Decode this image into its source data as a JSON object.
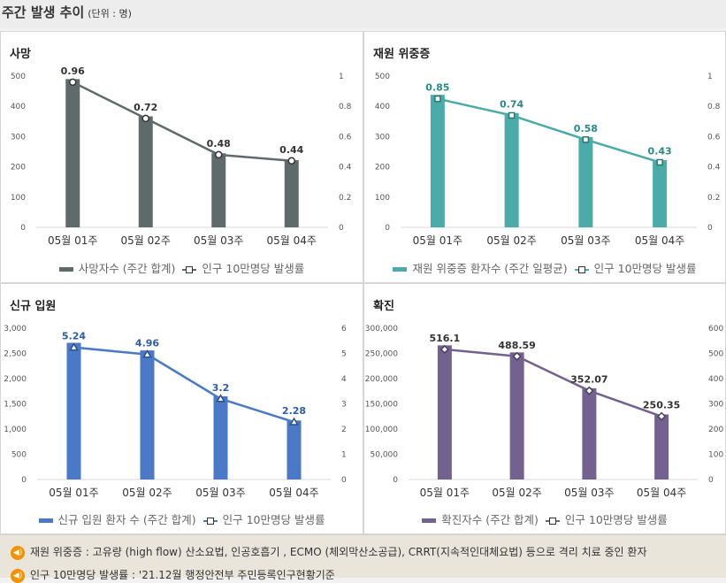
{
  "page": {
    "title": "주간 발생 추이",
    "unit": "(단위 : 명)"
  },
  "notes": [
    {
      "icon": "speaker-icon",
      "text": "재원 위중증 : 고유량 (high flow) 산소요법, 인공호흡기 , ECMO (체외막산소공급), CRRT(지속적인대체요법) 등으로 격리 치료 중인 환자"
    },
    {
      "icon": "speaker-icon",
      "text": "인구 10만명당 발생률 : '21.12월 행정안전부 주민등록인구현황기준"
    }
  ],
  "chart_data": [
    {
      "id": "deaths",
      "type": "bar",
      "title": "사망",
      "categories": [
        "05월 01주",
        "05월 02주",
        "05월 03주",
        "05월 04주"
      ],
      "series": [
        {
          "name": "사망자수 (주간 합계)",
          "kind": "bar",
          "axis": "left",
          "values": [
            490,
            367,
            245,
            222
          ],
          "color": "#5f6a6a"
        },
        {
          "name": "인구 10만명당 발생률",
          "kind": "line",
          "axis": "right",
          "marker": "circle",
          "values": [
            0.96,
            0.72,
            0.48,
            0.44
          ],
          "labels": [
            "0.96",
            "0.72",
            "0.48",
            "0.44"
          ],
          "color": "#5f6a6a"
        }
      ],
      "y_left": {
        "min": 0,
        "max": 500,
        "ticks": [
          "0",
          "100",
          "200",
          "300",
          "400",
          "500"
        ]
      },
      "y_right": {
        "min": 0,
        "max": 1,
        "ticks": [
          "0",
          "0.2",
          "0.4",
          "0.6",
          "0.8",
          "1"
        ]
      }
    },
    {
      "id": "critical",
      "type": "bar",
      "title": "재원 위중증",
      "categories": [
        "05월 01주",
        "05월 02주",
        "05월 03주",
        "05월 04주"
      ],
      "series": [
        {
          "name": "재원 위중증 환자수 (주간 일평균)",
          "kind": "bar",
          "axis": "left",
          "values": [
            438,
            378,
            298,
            222
          ],
          "color": "#4aaba8"
        },
        {
          "name": "인구 10만명당 발생률",
          "kind": "line",
          "axis": "right",
          "marker": "square",
          "values": [
            0.85,
            0.74,
            0.58,
            0.43
          ],
          "labels": [
            "0.85",
            "0.74",
            "0.58",
            "0.43"
          ],
          "color": "#4aaba8"
        }
      ],
      "y_left": {
        "min": 0,
        "max": 500,
        "ticks": [
          "0",
          "100",
          "200",
          "300",
          "400",
          "500"
        ]
      },
      "y_right": {
        "min": 0,
        "max": 1,
        "ticks": [
          "0",
          "0.2",
          "0.4",
          "0.6",
          "0.8",
          "1"
        ]
      }
    },
    {
      "id": "admissions",
      "type": "bar",
      "title": "신규 입원",
      "categories": [
        "05월 01주",
        "05월 02주",
        "05월 03주",
        "05월 04주"
      ],
      "series": [
        {
          "name": "신규 입원 환자 수 (주간 합계)",
          "kind": "bar",
          "axis": "left",
          "values": [
            2710,
            2560,
            1650,
            1170
          ],
          "color": "#4a7ac7"
        },
        {
          "name": "인구 10만명당 발생률",
          "kind": "line",
          "axis": "right",
          "marker": "triangle",
          "values": [
            5.24,
            4.96,
            3.2,
            2.28
          ],
          "labels": [
            "5.24",
            "4.96",
            "3.2",
            "2.28"
          ],
          "color": "#4a7ac7"
        }
      ],
      "y_left": {
        "min": 0,
        "max": 3000,
        "ticks": [
          "0",
          "500",
          "1,000",
          "1,500",
          "2,000",
          "2,500",
          "3,000"
        ]
      },
      "y_right": {
        "min": 0,
        "max": 6,
        "ticks": [
          "0",
          "1",
          "2",
          "3",
          "4",
          "5",
          "6"
        ]
      }
    },
    {
      "id": "confirmed",
      "type": "bar",
      "title": "확진",
      "categories": [
        "05월 01주",
        "05월 02주",
        "05월 03주",
        "05월 04주"
      ],
      "series": [
        {
          "name": "확진자수 (주간 합계)",
          "kind": "bar",
          "axis": "left",
          "values": [
            266000,
            252000,
            181000,
            129000
          ],
          "color": "#73618f"
        },
        {
          "name": "인구 10만명당 발생률",
          "kind": "line",
          "axis": "right",
          "marker": "diamond",
          "values": [
            516.1,
            488.59,
            352.07,
            250.35
          ],
          "labels": [
            "516.1",
            "488.59",
            "352.07",
            "250.35"
          ],
          "color": "#73618f"
        }
      ],
      "y_left": {
        "min": 0,
        "max": 300000,
        "ticks": [
          "0",
          "50,000",
          "100,000",
          "150,000",
          "200,000",
          "250,000",
          "300,000"
        ]
      },
      "y_right": {
        "min": 0,
        "max": 600,
        "ticks": [
          "0",
          "100",
          "200",
          "300",
          "400",
          "500",
          "600"
        ]
      }
    }
  ]
}
